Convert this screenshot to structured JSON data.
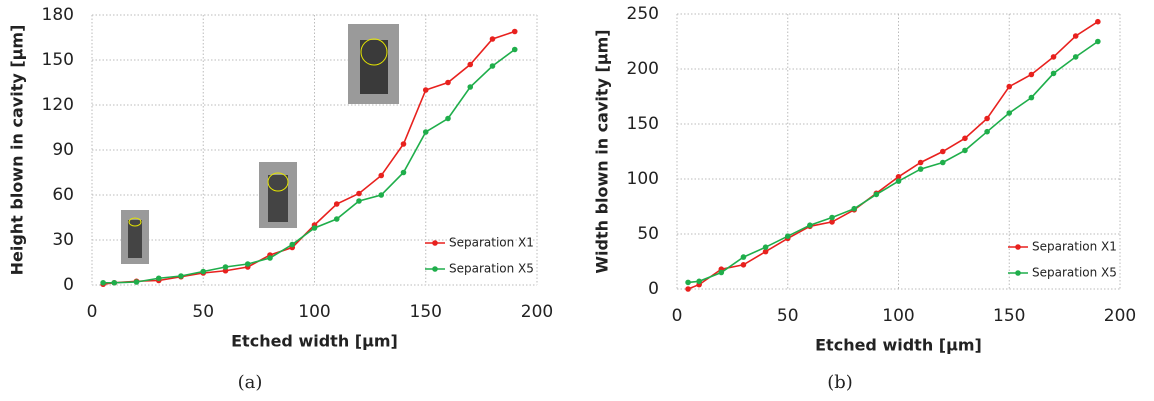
{
  "chart_data": [
    {
      "type": "line",
      "caption": "(a)",
      "x_label": "Etched width [μm]",
      "y_label": "Height blown in cavity [μm]",
      "x": [
        5,
        10,
        20,
        30,
        40,
        50,
        60,
        70,
        80,
        90,
        100,
        110,
        120,
        130,
        140,
        150,
        160,
        170,
        180,
        190
      ],
      "series": [
        {
          "name": "Separation X1",
          "color": "#e8211e",
          "values": [
            0.5,
            1.5,
            2.5,
            3,
            5.5,
            8,
            9.5,
            12,
            20,
            25,
            40,
            54,
            61,
            73,
            94,
            130,
            135,
            147,
            164,
            169
          ]
        },
        {
          "name": "Separation X5",
          "color": "#1fae4b",
          "values": [
            1.5,
            1.5,
            2,
            4.5,
            6,
            9,
            12,
            14,
            18,
            27,
            38,
            44,
            56,
            60,
            75,
            102,
            111,
            132,
            146,
            157
          ]
        }
      ],
      "xlim": [
        0,
        200
      ],
      "xticks": [
        0,
        50,
        100,
        150,
        200
      ],
      "ylim": [
        0,
        180
      ],
      "yticks": [
        0,
        30,
        60,
        90,
        120,
        150,
        180
      ],
      "grid": true,
      "legend": "lower right"
    },
    {
      "type": "line",
      "caption": "(b)",
      "x_label": "Etched width [μm]",
      "y_label": "Width blown in cavity [μm]",
      "x": [
        5,
        10,
        20,
        30,
        40,
        50,
        60,
        70,
        80,
        90,
        100,
        110,
        120,
        130,
        140,
        150,
        160,
        170,
        180,
        190
      ],
      "series": [
        {
          "name": "Separation X1",
          "color": "#e8211e",
          "values": [
            0,
            4,
            18,
            22,
            34,
            46,
            57,
            61,
            72,
            87,
            102,
            115,
            125,
            137,
            155,
            184,
            195,
            211,
            230,
            243
          ]
        },
        {
          "name": "Separation X5",
          "color": "#1fae4b",
          "values": [
            6,
            7,
            15,
            29,
            38,
            48,
            58,
            65,
            73,
            86,
            98,
            109,
            115,
            126,
            143,
            160,
            174,
            196,
            211,
            225
          ]
        }
      ],
      "xlim": [
        0,
        200
      ],
      "xticks": [
        0,
        50,
        100,
        150,
        200
      ],
      "ylim": [
        0,
        250
      ],
      "yticks": [
        0,
        50,
        100,
        150,
        200,
        250
      ],
      "grid": true,
      "legend": "lower right"
    }
  ]
}
